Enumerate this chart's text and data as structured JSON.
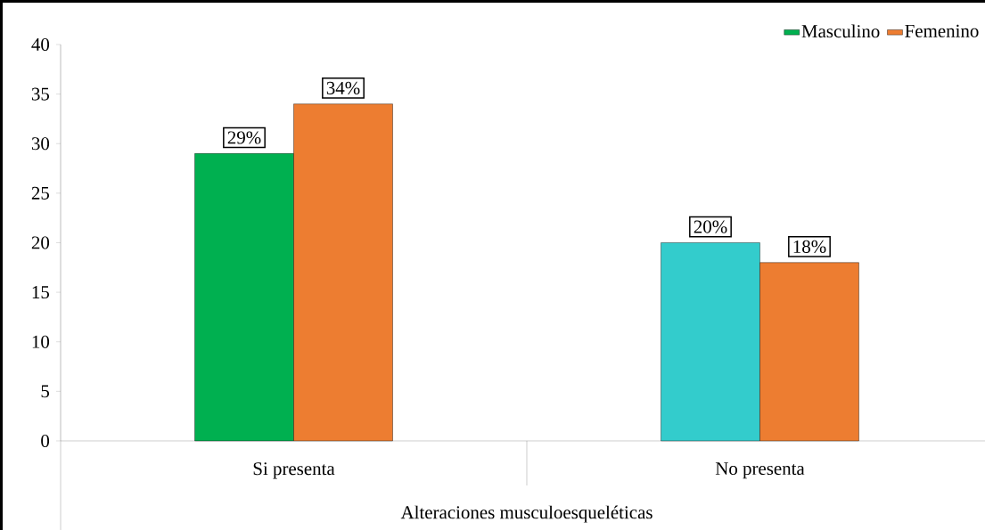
{
  "chart_data": {
    "type": "bar",
    "categories": [
      "Si presenta",
      "No presenta"
    ],
    "xlabel": "Alteraciones musculoesqueléticas",
    "series": [
      {
        "name": "Masculino",
        "color": "#00b050",
        "colors": [
          "#00b050",
          "#33cccc"
        ],
        "values": [
          29,
          20
        ],
        "value_labels": [
          "29%",
          "20%"
        ]
      },
      {
        "name": "Femenino",
        "color": "#ed7d31",
        "values": [
          34,
          18
        ],
        "value_labels": [
          "34%",
          "18%"
        ]
      }
    ],
    "ylim": [
      0,
      40
    ],
    "yticks": [
      0,
      5,
      10,
      15,
      20,
      25,
      30,
      35,
      40
    ],
    "legend": "top right"
  }
}
